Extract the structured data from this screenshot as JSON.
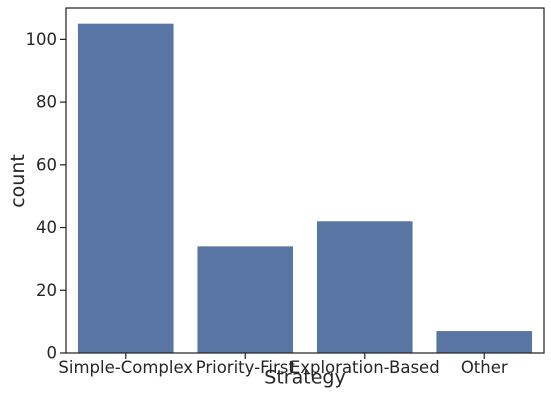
{
  "chart_data": {
    "type": "bar",
    "categories": [
      "Simple-Complex",
      "Priority-First",
      "Exploration-Based",
      "Other"
    ],
    "values": [
      105,
      34,
      42,
      7
    ],
    "xlabel": "Strategy",
    "ylabel": "count",
    "ylim": [
      0,
      110
    ],
    "yticks": [
      0,
      20,
      40,
      60,
      80,
      100
    ],
    "grid": false,
    "bar_color": "#5875a4",
    "axis_color": "#262626"
  }
}
